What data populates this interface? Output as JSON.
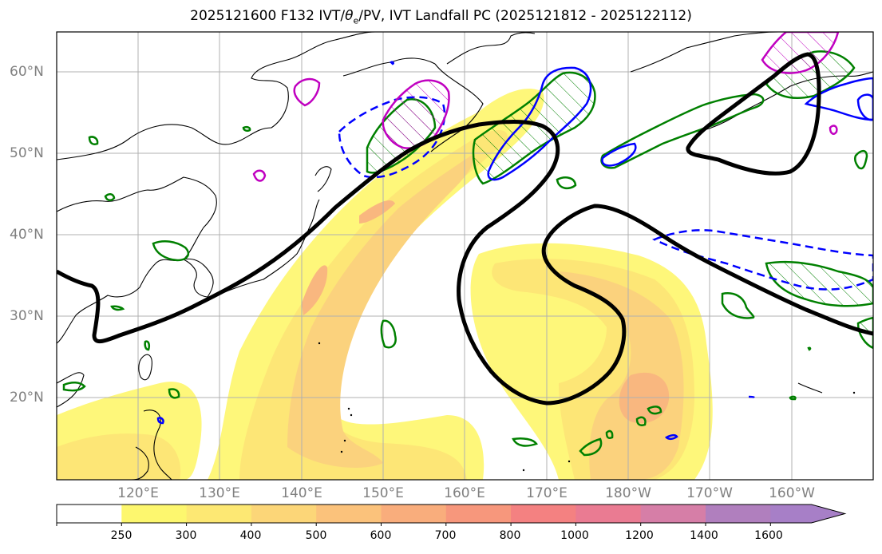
{
  "title_main": "2025121600 F132 IVT/",
  "title_theta": "θ",
  "title_sub": "e",
  "title_rest": "/PV, IVT Landfall PC (2025121812 - 2025122112)",
  "lat_labels": [
    "60°N",
    "50°N",
    "40°N",
    "30°N",
    "20°N"
  ],
  "lon_labels": [
    "120°E",
    "130°E",
    "140°E",
    "150°E",
    "160°E",
    "170°E",
    "180°W",
    "170°W",
    "160°W"
  ],
  "colorbar": {
    "labels": [
      "250",
      "300",
      "400",
      "500",
      "600",
      "700",
      "800",
      "1000",
      "1200",
      "1400",
      "1600"
    ],
    "colors": [
      "#ffffff",
      "#fdf76e",
      "#fde873",
      "#fcd678",
      "#fbc27b",
      "#f9ad7c",
      "#f7977c",
      "#f48181",
      "#ea7b92",
      "#d67ea7",
      "#b07fbe",
      "#a77fc7"
    ]
  },
  "map_colors": {
    "ivt_fill": [
      "#fef77a",
      "#fde676",
      "#fbd27d",
      "#f9b77f"
    ],
    "theta_contour": "#000000",
    "pv_green": "#008000",
    "pv_blue": "#0000ff",
    "pv_magenta": "#c000c0"
  }
}
